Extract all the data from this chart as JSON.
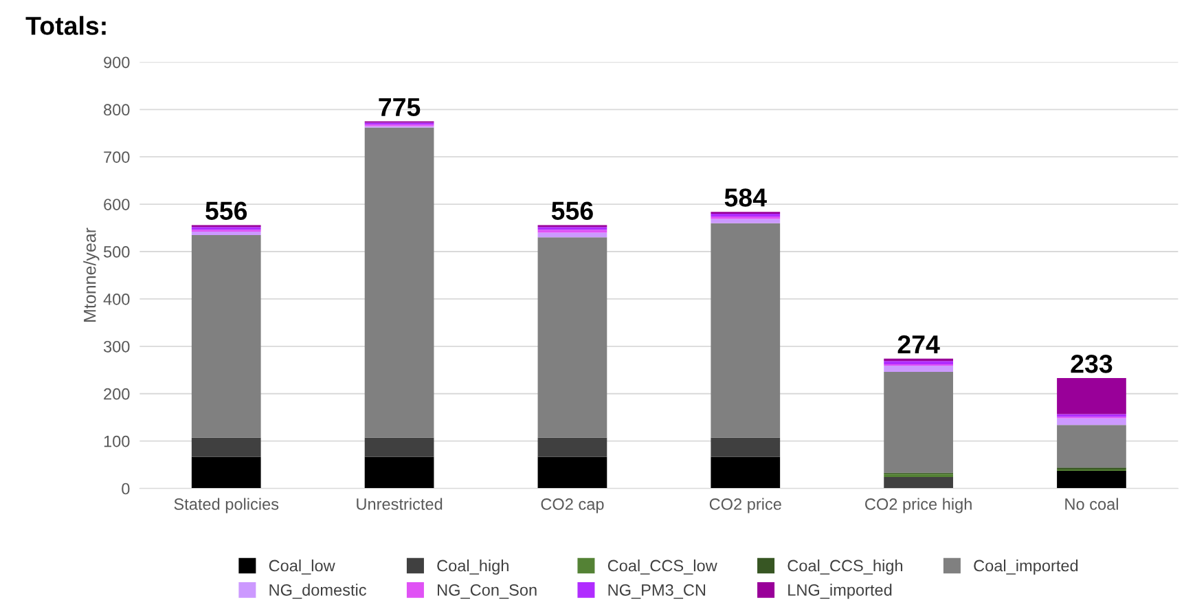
{
  "chart_data": {
    "type": "bar",
    "stacked": true,
    "ylabel": "Mtonne/year",
    "categories": [
      "Stated policies",
      "Unrestricted",
      "CO2 cap",
      "CO2 price",
      "CO2 price high",
      "No coal"
    ],
    "series": [
      {
        "name": "Coal_low",
        "color": "#000000",
        "values": [
          67,
          67,
          67,
          67,
          0,
          37
        ]
      },
      {
        "name": "Coal_high",
        "color": "#404040",
        "values": [
          40,
          40,
          40,
          40,
          24,
          0
        ]
      },
      {
        "name": "Coal_CCS_low",
        "color": "#548235",
        "values": [
          0,
          0,
          0,
          0,
          7,
          3
        ]
      },
      {
        "name": "Coal_CCS_high",
        "color": "#375623",
        "values": [
          0,
          0,
          0,
          0,
          2,
          4
        ]
      },
      {
        "name": "Coal_imported",
        "color": "#808080",
        "values": [
          428,
          655,
          423,
          453,
          213,
          90
        ]
      },
      {
        "name": "NG_domestic",
        "color": "#cc99ff",
        "values": [
          7,
          3,
          10,
          9,
          13,
          14
        ]
      },
      {
        "name": "NG_Con_Son",
        "color": "#e052f5",
        "values": [
          4,
          3,
          6,
          5,
          3,
          3
        ]
      },
      {
        "name": "NG_PM3_CN",
        "color": "#b02cff",
        "values": [
          6,
          4,
          6,
          6,
          7,
          6
        ]
      },
      {
        "name": "LNG_imported",
        "color": "#990099",
        "values": [
          4,
          3,
          4,
          4,
          5,
          76
        ]
      }
    ],
    "ylim": [
      0,
      900
    ],
    "yticks": [
      0,
      100,
      200,
      300,
      400,
      500,
      600,
      700,
      800,
      900
    ],
    "grid": "y",
    "legend": "bottom",
    "totals": [
      "556",
      "775",
      "556",
      "584",
      "274",
      "233"
    ],
    "annotations": [
      "Totals:"
    ]
  }
}
